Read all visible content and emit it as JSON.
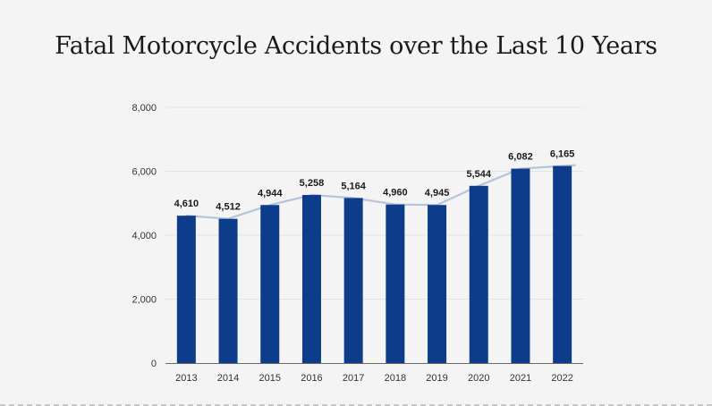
{
  "chart_data": {
    "type": "bar",
    "title": "Fatal Motorcycle Accidents over the Last 10 Years",
    "categories": [
      "2013",
      "2014",
      "2015",
      "2016",
      "2017",
      "2018",
      "2019",
      "2020",
      "2021",
      "2022"
    ],
    "values": [
      4610,
      4512,
      4944,
      5258,
      5164,
      4960,
      4945,
      5544,
      6082,
      6165
    ],
    "data_labels": [
      "4,610",
      "4,512",
      "4,944",
      "5,258",
      "5,164",
      "4,960",
      "4,945",
      "5,544",
      "6,082",
      "6,165"
    ],
    "ylim": [
      0,
      8000
    ],
    "yticks": [
      0,
      2000,
      4000,
      6000,
      8000
    ],
    "ytick_labels": [
      "0",
      "2,000",
      "4,000",
      "6,000",
      "8,000"
    ],
    "grid": true,
    "legend": "none",
    "trend_line": true,
    "colors": {
      "bar": "#0d3d8a",
      "trend": "#b6c3d9",
      "grid": "#e3e3e6",
      "axis": "#6b6b6b"
    }
  }
}
